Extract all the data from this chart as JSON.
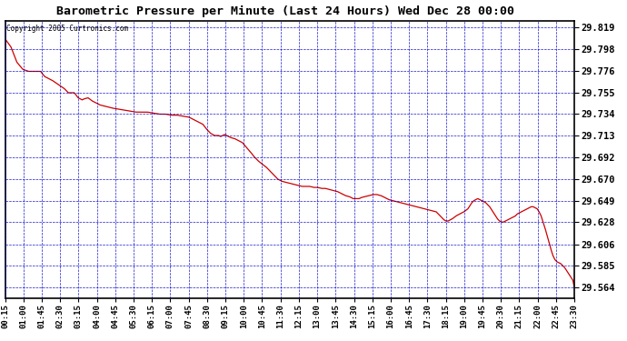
{
  "title": "Barometric Pressure per Minute (Last 24 Hours) Wed Dec 28 00:00",
  "copyright": "Copyright 2005 Curtronics.com",
  "background_color": "#ffffff",
  "line_color": "#cc0000",
  "grid_color": "#0000cc",
  "y_min": 29.553,
  "y_max": 29.826,
  "y_ticks": [
    29.819,
    29.798,
    29.776,
    29.755,
    29.734,
    29.713,
    29.692,
    29.67,
    29.649,
    29.628,
    29.606,
    29.585,
    29.564
  ],
  "x_tick_labels": [
    "00:15",
    "01:00",
    "01:45",
    "02:30",
    "03:15",
    "04:00",
    "04:45",
    "05:30",
    "06:15",
    "07:00",
    "07:45",
    "08:30",
    "09:15",
    "10:00",
    "10:45",
    "11:30",
    "12:15",
    "13:00",
    "13:45",
    "14:30",
    "15:15",
    "16:00",
    "16:45",
    "17:30",
    "18:15",
    "19:00",
    "19:45",
    "20:30",
    "21:15",
    "22:00",
    "22:45",
    "23:30"
  ],
  "keypoints": [
    [
      0,
      29.808
    ],
    [
      15,
      29.8
    ],
    [
      30,
      29.785
    ],
    [
      45,
      29.778
    ],
    [
      60,
      29.776
    ],
    [
      90,
      29.776
    ],
    [
      100,
      29.771
    ],
    [
      110,
      29.769
    ],
    [
      120,
      29.767
    ],
    [
      135,
      29.763
    ],
    [
      150,
      29.759
    ],
    [
      155,
      29.757
    ],
    [
      160,
      29.755
    ],
    [
      175,
      29.755
    ],
    [
      185,
      29.75
    ],
    [
      195,
      29.748
    ],
    [
      200,
      29.749
    ],
    [
      210,
      29.75
    ],
    [
      220,
      29.747
    ],
    [
      230,
      29.745
    ],
    [
      240,
      29.743
    ],
    [
      260,
      29.741
    ],
    [
      270,
      29.74
    ],
    [
      285,
      29.739
    ],
    [
      300,
      29.738
    ],
    [
      315,
      29.737
    ],
    [
      330,
      29.736
    ],
    [
      345,
      29.736
    ],
    [
      360,
      29.736
    ],
    [
      375,
      29.735
    ],
    [
      390,
      29.734
    ],
    [
      405,
      29.734
    ],
    [
      420,
      29.733
    ],
    [
      435,
      29.733
    ],
    [
      450,
      29.732
    ],
    [
      465,
      29.731
    ],
    [
      480,
      29.728
    ],
    [
      500,
      29.724
    ],
    [
      510,
      29.719
    ],
    [
      515,
      29.717
    ],
    [
      520,
      29.715
    ],
    [
      530,
      29.713
    ],
    [
      540,
      29.713
    ],
    [
      545,
      29.712
    ],
    [
      550,
      29.713
    ],
    [
      555,
      29.714
    ],
    [
      560,
      29.713
    ],
    [
      570,
      29.711
    ],
    [
      580,
      29.71
    ],
    [
      600,
      29.706
    ],
    [
      620,
      29.697
    ],
    [
      630,
      29.692
    ],
    [
      640,
      29.688
    ],
    [
      650,
      29.685
    ],
    [
      660,
      29.682
    ],
    [
      680,
      29.674
    ],
    [
      690,
      29.67
    ],
    [
      700,
      29.668
    ],
    [
      710,
      29.667
    ],
    [
      720,
      29.666
    ],
    [
      730,
      29.665
    ],
    [
      740,
      29.664
    ],
    [
      750,
      29.663
    ],
    [
      760,
      29.663
    ],
    [
      770,
      29.663
    ],
    [
      780,
      29.662
    ],
    [
      790,
      29.662
    ],
    [
      800,
      29.661
    ],
    [
      810,
      29.661
    ],
    [
      820,
      29.66
    ],
    [
      840,
      29.658
    ],
    [
      850,
      29.656
    ],
    [
      860,
      29.654
    ],
    [
      870,
      29.653
    ],
    [
      880,
      29.651
    ],
    [
      895,
      29.651
    ],
    [
      900,
      29.652
    ],
    [
      910,
      29.653
    ],
    [
      920,
      29.654
    ],
    [
      930,
      29.655
    ],
    [
      940,
      29.655
    ],
    [
      950,
      29.654
    ],
    [
      960,
      29.652
    ],
    [
      970,
      29.65
    ],
    [
      980,
      29.649
    ],
    [
      990,
      29.648
    ],
    [
      1000,
      29.647
    ],
    [
      1010,
      29.646
    ],
    [
      1020,
      29.645
    ],
    [
      1030,
      29.644
    ],
    [
      1040,
      29.643
    ],
    [
      1050,
      29.642
    ],
    [
      1060,
      29.641
    ],
    [
      1070,
      29.64
    ],
    [
      1080,
      29.639
    ],
    [
      1090,
      29.638
    ],
    [
      1095,
      29.636
    ],
    [
      1100,
      29.634
    ],
    [
      1105,
      29.632
    ],
    [
      1110,
      29.63
    ],
    [
      1115,
      29.629
    ],
    [
      1120,
      29.629
    ],
    [
      1125,
      29.63
    ],
    [
      1130,
      29.631
    ],
    [
      1140,
      29.634
    ],
    [
      1150,
      29.636
    ],
    [
      1160,
      29.638
    ],
    [
      1170,
      29.641
    ],
    [
      1175,
      29.644
    ],
    [
      1180,
      29.647
    ],
    [
      1185,
      29.649
    ],
    [
      1190,
      29.65
    ],
    [
      1195,
      29.651
    ],
    [
      1200,
      29.65
    ],
    [
      1205,
      29.649
    ],
    [
      1210,
      29.648
    ],
    [
      1215,
      29.647
    ],
    [
      1220,
      29.645
    ],
    [
      1225,
      29.643
    ],
    [
      1230,
      29.64
    ],
    [
      1235,
      29.637
    ],
    [
      1240,
      29.634
    ],
    [
      1245,
      29.631
    ],
    [
      1250,
      29.629
    ],
    [
      1255,
      29.628
    ],
    [
      1260,
      29.628
    ],
    [
      1265,
      29.629
    ],
    [
      1270,
      29.63
    ],
    [
      1275,
      29.631
    ],
    [
      1280,
      29.632
    ],
    [
      1285,
      29.633
    ],
    [
      1290,
      29.634
    ],
    [
      1295,
      29.636
    ],
    [
      1300,
      29.637
    ],
    [
      1305,
      29.638
    ],
    [
      1310,
      29.639
    ],
    [
      1315,
      29.64
    ],
    [
      1320,
      29.641
    ],
    [
      1325,
      29.642
    ],
    [
      1330,
      29.643
    ],
    [
      1335,
      29.643
    ],
    [
      1340,
      29.642
    ],
    [
      1345,
      29.641
    ],
    [
      1350,
      29.638
    ],
    [
      1355,
      29.634
    ],
    [
      1360,
      29.628
    ],
    [
      1365,
      29.622
    ],
    [
      1370,
      29.615
    ],
    [
      1375,
      29.608
    ],
    [
      1380,
      29.601
    ],
    [
      1385,
      29.595
    ],
    [
      1390,
      29.591
    ],
    [
      1395,
      29.589
    ],
    [
      1400,
      29.588
    ],
    [
      1405,
      29.587
    ],
    [
      1410,
      29.585
    ],
    [
      1415,
      29.583
    ],
    [
      1420,
      29.58
    ],
    [
      1425,
      29.577
    ],
    [
      1430,
      29.574
    ],
    [
      1435,
      29.571
    ],
    [
      1439,
      29.564
    ]
  ]
}
